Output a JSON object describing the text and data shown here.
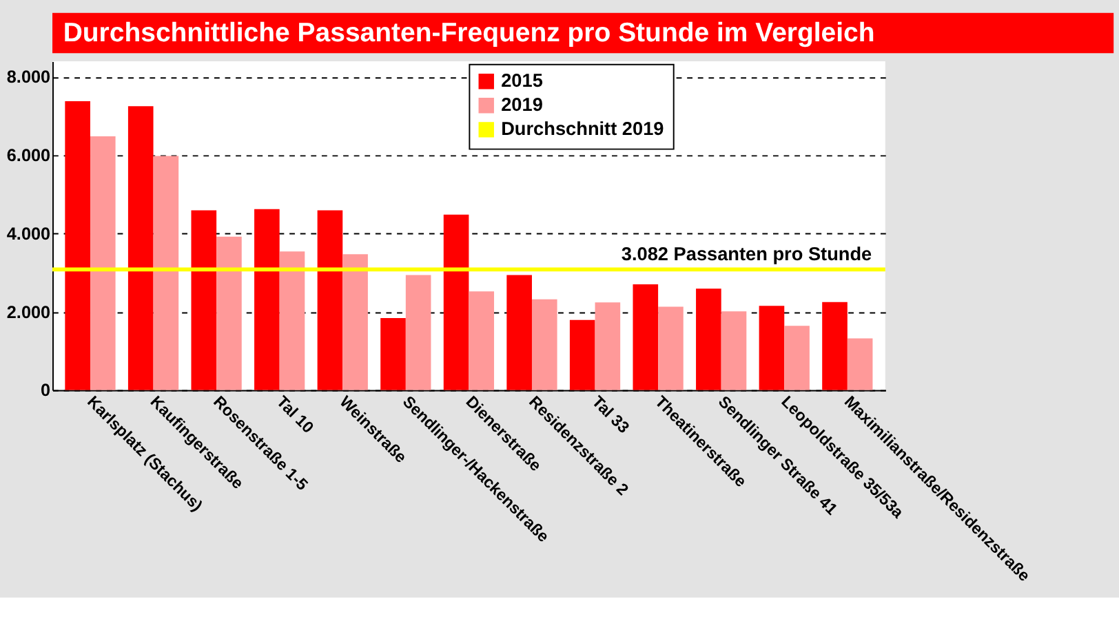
{
  "chart_data": {
    "type": "bar",
    "title": "Durchschnittliche Passanten-Frequenz pro Stunde im Vergleich",
    "categories": [
      "Karlsplatz (Stachus)",
      "Kaufingerstraße",
      "Rosenstraße 1-5",
      "Tal 10",
      "Weinstraße",
      "Sendlinger-/Hackenstraße",
      "Dienerstraße",
      "Residenzstraße 2",
      "Tal 33",
      "Theatinerstraße",
      "Sendlinger Straße 41",
      "Leopoldstraße 35/53a",
      "Maximilianstraße/Residenzstraße"
    ],
    "series": [
      {
        "name": "2015",
        "color": "#ff0000",
        "values": [
          7380,
          7250,
          4590,
          4620,
          4590,
          1840,
          4480,
          2940,
          1790,
          2700,
          2590,
          2150,
          2250
        ]
      },
      {
        "name": "2019",
        "color": "#ff9999",
        "values": [
          6480,
          5980,
          3920,
          3540,
          3470,
          2940,
          2520,
          2320,
          2240,
          2130,
          2010,
          1640,
          1320
        ]
      }
    ],
    "ylim": [
      0,
      8400
    ],
    "yticks": [
      0,
      {
        "value": 2000,
        "label": "2.000"
      },
      {
        "value": 4000,
        "label": "4.000"
      },
      {
        "value": 6000,
        "label": "6.000"
      },
      {
        "value": 8000,
        "label": "8.000"
      }
    ],
    "ref_lines": [
      {
        "axis": "y",
        "value": 3082,
        "label": "Durchschnitt 2019",
        "color": "#ffff00"
      }
    ],
    "annotations": [
      {
        "text": "3.082 Passanten pro Stunde",
        "y": 3082
      }
    ],
    "grid": "y",
    "legend": "top"
  }
}
